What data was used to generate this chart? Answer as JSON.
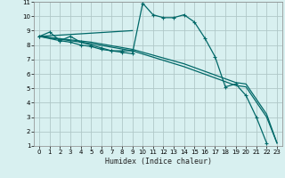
{
  "xlabel": "Humidex (Indice chaleur)",
  "background_color": "#d8f0f0",
  "plot_bg_color": "#d8f0f0",
  "grid_color": "#b0c8c8",
  "line_color": "#006868",
  "xlim": [
    -0.5,
    23.5
  ],
  "ylim": [
    1,
    11
  ],
  "xticks": [
    0,
    1,
    2,
    3,
    4,
    5,
    6,
    7,
    8,
    9,
    10,
    11,
    12,
    13,
    14,
    15,
    16,
    17,
    18,
    19,
    20,
    21,
    22,
    23
  ],
  "yticks": [
    1,
    2,
    3,
    4,
    5,
    6,
    7,
    8,
    9,
    10,
    11
  ],
  "series1_x": [
    0,
    1,
    2,
    3,
    4,
    5,
    6,
    7,
    8,
    9,
    10,
    11,
    12,
    13,
    14,
    15,
    16,
    17,
    18,
    19,
    20,
    21,
    22
  ],
  "series1_y": [
    8.6,
    8.9,
    8.3,
    8.2,
    8.0,
    7.9,
    7.7,
    7.6,
    7.5,
    7.4,
    10.9,
    10.1,
    9.9,
    9.9,
    10.1,
    9.6,
    8.5,
    7.2,
    5.1,
    5.3,
    4.5,
    3.0,
    1.2
  ],
  "series2_x": [
    0,
    2,
    3,
    4,
    5,
    6,
    7,
    8,
    9
  ],
  "series2_y": [
    8.6,
    8.3,
    8.6,
    8.2,
    8.0,
    7.8,
    7.6,
    7.6,
    7.6
  ],
  "series3_x": [
    0,
    9
  ],
  "series3_y": [
    8.6,
    9.0
  ],
  "series4_x": [
    0,
    5,
    9,
    14,
    19,
    20,
    22,
    23
  ],
  "series4_y": [
    8.6,
    8.1,
    7.6,
    6.5,
    5.2,
    5.1,
    3.0,
    1.2
  ],
  "series5_x": [
    0,
    5,
    9,
    14,
    19,
    20,
    22,
    23
  ],
  "series5_y": [
    8.6,
    8.2,
    7.7,
    6.7,
    5.4,
    5.3,
    3.2,
    1.2
  ]
}
